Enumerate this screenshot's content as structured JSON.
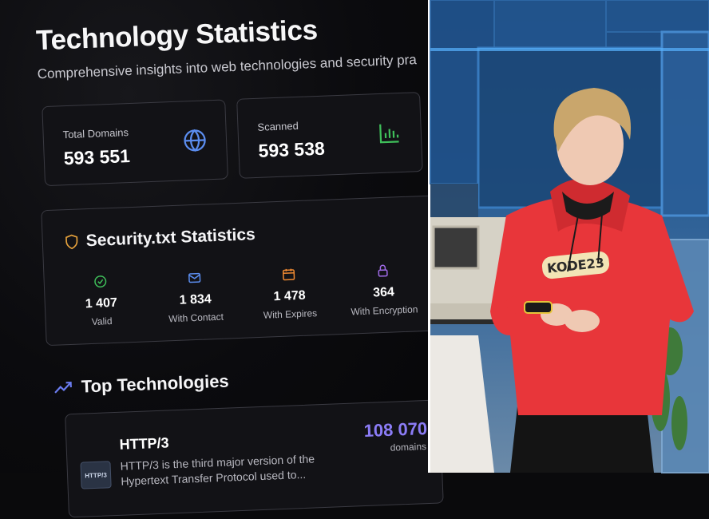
{
  "screen": {
    "title": "Technology Statistics",
    "subtitle": "Comprehensive insights into web technologies and security pra",
    "stats": [
      {
        "label": "Total Domains",
        "value": "593 551",
        "icon": "globe-icon",
        "color": "#5b8def"
      },
      {
        "label": "Scanned",
        "value": "593 538",
        "icon": "bar-chart-icon",
        "color": "#3fbf5a"
      }
    ],
    "security": {
      "heading": "Security.txt Statistics",
      "icon": "shield-icon",
      "items": [
        {
          "value": "1 407",
          "label": "Valid",
          "icon": "check-circle-icon",
          "color": "#3fbf5a"
        },
        {
          "value": "1 834",
          "label": "With Contact",
          "icon": "mail-icon",
          "color": "#5b8def"
        },
        {
          "value": "1 478",
          "label": "With Expires",
          "icon": "calendar-icon",
          "color": "#f08a32"
        },
        {
          "value": "364",
          "label": "With Encryption",
          "icon": "lock-icon",
          "color": "#a06be8"
        }
      ]
    },
    "top_technologies": {
      "heading": "Top Technologies",
      "icon": "trending-up-icon",
      "items": [
        {
          "name": "HTTP/3",
          "description": "HTTP/3 is the third major version of the Hypertext Transfer Protocol used to...",
          "count": "108 070",
          "unit": "domains",
          "logo_text": "HTTP/3"
        }
      ]
    }
  },
  "stage": {
    "hoodie_text": "KODE23"
  }
}
